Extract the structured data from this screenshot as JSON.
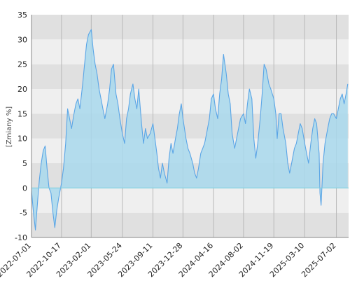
{
  "chart_data": {
    "type": "area",
    "ylabel": "[Zmiany %]",
    "ylim": [
      -10,
      35
    ],
    "yticks": [
      -10,
      -5,
      0,
      5,
      10,
      15,
      20,
      25,
      30,
      35
    ],
    "xlim": [
      "2022-07-01",
      "2025-08-15"
    ],
    "xticks": [
      "2022-07-01",
      "2022-10-17",
      "2023-02-01",
      "2023-05-24",
      "2023-09-11",
      "2023-12-28",
      "2024-04-16",
      "2024-08-02",
      "2024-11-19",
      "2025-03-10",
      "2025-07-02"
    ],
    "grid": true,
    "series": [
      {
        "points": [
          [
            "2022-07-01",
            -0.5
          ],
          [
            "2022-07-08",
            -5
          ],
          [
            "2022-07-15",
            -8.5
          ],
          [
            "2022-07-22",
            -3.5
          ],
          [
            "2022-07-29",
            1.5
          ],
          [
            "2022-08-05",
            5
          ],
          [
            "2022-08-12",
            7.5
          ],
          [
            "2022-08-19",
            8.5
          ],
          [
            "2022-08-26",
            4
          ],
          [
            "2022-09-02",
            0
          ],
          [
            "2022-09-09",
            -1
          ],
          [
            "2022-09-16",
            -5
          ],
          [
            "2022-09-23",
            -8
          ],
          [
            "2022-09-30",
            -4.5
          ],
          [
            "2022-10-07",
            -2
          ],
          [
            "2022-10-17",
            1
          ],
          [
            "2022-10-24",
            4
          ],
          [
            "2022-11-01",
            9
          ],
          [
            "2022-11-08",
            16
          ],
          [
            "2022-11-15",
            14
          ],
          [
            "2022-11-22",
            12
          ],
          [
            "2022-12-01",
            15
          ],
          [
            "2022-12-08",
            17
          ],
          [
            "2022-12-15",
            18
          ],
          [
            "2022-12-22",
            16
          ],
          [
            "2023-01-01",
            21
          ],
          [
            "2023-01-08",
            25
          ],
          [
            "2023-01-15",
            29
          ],
          [
            "2023-01-22",
            31
          ],
          [
            "2023-02-01",
            32
          ],
          [
            "2023-02-08",
            28
          ],
          [
            "2023-02-15",
            25
          ],
          [
            "2023-02-22",
            23
          ],
          [
            "2023-03-01",
            20
          ],
          [
            "2023-03-08",
            18
          ],
          [
            "2023-03-15",
            16
          ],
          [
            "2023-03-22",
            14
          ],
          [
            "2023-04-01",
            17
          ],
          [
            "2023-04-08",
            20
          ],
          [
            "2023-04-15",
            24
          ],
          [
            "2023-04-22",
            25
          ],
          [
            "2023-05-01",
            19
          ],
          [
            "2023-05-08",
            17
          ],
          [
            "2023-05-15",
            14
          ],
          [
            "2023-05-24",
            11
          ],
          [
            "2023-06-01",
            9
          ],
          [
            "2023-06-08",
            14
          ],
          [
            "2023-06-15",
            16
          ],
          [
            "2023-06-22",
            19
          ],
          [
            "2023-07-01",
            21
          ],
          [
            "2023-07-08",
            18
          ],
          [
            "2023-07-15",
            16
          ],
          [
            "2023-07-22",
            20
          ],
          [
            "2023-08-01",
            13
          ],
          [
            "2023-08-08",
            9
          ],
          [
            "2023-08-15",
            12
          ],
          [
            "2023-08-22",
            10
          ],
          [
            "2023-09-01",
            11
          ],
          [
            "2023-09-11",
            13
          ],
          [
            "2023-09-18",
            10
          ],
          [
            "2023-09-25",
            7
          ],
          [
            "2023-10-01",
            4
          ],
          [
            "2023-10-08",
            2
          ],
          [
            "2023-10-15",
            5
          ],
          [
            "2023-10-22",
            3
          ],
          [
            "2023-11-01",
            1
          ],
          [
            "2023-11-08",
            6
          ],
          [
            "2023-11-15",
            9
          ],
          [
            "2023-11-22",
            7
          ],
          [
            "2023-12-01",
            10
          ],
          [
            "2023-12-08",
            12
          ],
          [
            "2023-12-15",
            15
          ],
          [
            "2023-12-22",
            17
          ],
          [
            "2023-12-28",
            14
          ],
          [
            "2024-01-08",
            10
          ],
          [
            "2024-01-15",
            8
          ],
          [
            "2024-01-22",
            7
          ],
          [
            "2024-02-01",
            5
          ],
          [
            "2024-02-08",
            3
          ],
          [
            "2024-02-15",
            2
          ],
          [
            "2024-02-22",
            4
          ],
          [
            "2024-03-01",
            7
          ],
          [
            "2024-03-08",
            8
          ],
          [
            "2024-03-15",
            9
          ],
          [
            "2024-03-22",
            11
          ],
          [
            "2024-04-01",
            14
          ],
          [
            "2024-04-08",
            18
          ],
          [
            "2024-04-16",
            19
          ],
          [
            "2024-04-23",
            16
          ],
          [
            "2024-05-01",
            14
          ],
          [
            "2024-05-08",
            19
          ],
          [
            "2024-05-15",
            22
          ],
          [
            "2024-05-22",
            27
          ],
          [
            "2024-06-01",
            23
          ],
          [
            "2024-06-08",
            19
          ],
          [
            "2024-06-15",
            17
          ],
          [
            "2024-06-22",
            11
          ],
          [
            "2024-07-01",
            8
          ],
          [
            "2024-07-08",
            10
          ],
          [
            "2024-07-15",
            12
          ],
          [
            "2024-07-22",
            14
          ],
          [
            "2024-08-02",
            15
          ],
          [
            "2024-08-09",
            13
          ],
          [
            "2024-08-16",
            17
          ],
          [
            "2024-08-23",
            20
          ],
          [
            "2024-09-01",
            18
          ],
          [
            "2024-09-08",
            10
          ],
          [
            "2024-09-15",
            6
          ],
          [
            "2024-09-22",
            9
          ],
          [
            "2024-10-01",
            14
          ],
          [
            "2024-10-08",
            19
          ],
          [
            "2024-10-15",
            25
          ],
          [
            "2024-10-22",
            24
          ],
          [
            "2024-11-01",
            21
          ],
          [
            "2024-11-08",
            20
          ],
          [
            "2024-11-19",
            18
          ],
          [
            "2024-11-26",
            15
          ],
          [
            "2024-12-01",
            10
          ],
          [
            "2024-12-08",
            15
          ],
          [
            "2024-12-15",
            15
          ],
          [
            "2024-12-22",
            12
          ],
          [
            "2025-01-01",
            9
          ],
          [
            "2025-01-08",
            5
          ],
          [
            "2025-01-15",
            3
          ],
          [
            "2025-01-22",
            5
          ],
          [
            "2025-02-01",
            8
          ],
          [
            "2025-02-08",
            9
          ],
          [
            "2025-02-15",
            11
          ],
          [
            "2025-02-22",
            13
          ],
          [
            "2025-03-01",
            12
          ],
          [
            "2025-03-10",
            9
          ],
          [
            "2025-03-17",
            7
          ],
          [
            "2025-03-24",
            5
          ],
          [
            "2025-04-01",
            9
          ],
          [
            "2025-04-08",
            12
          ],
          [
            "2025-04-15",
            14
          ],
          [
            "2025-04-22",
            13
          ],
          [
            "2025-05-01",
            7
          ],
          [
            "2025-05-04",
            -1
          ],
          [
            "2025-05-08",
            -3.5
          ],
          [
            "2025-05-15",
            5
          ],
          [
            "2025-05-22",
            9
          ],
          [
            "2025-06-01",
            12
          ],
          [
            "2025-06-08",
            14
          ],
          [
            "2025-06-15",
            15
          ],
          [
            "2025-06-22",
            15
          ],
          [
            "2025-07-02",
            14
          ],
          [
            "2025-07-09",
            16
          ],
          [
            "2025-07-16",
            18
          ],
          [
            "2025-07-23",
            19
          ],
          [
            "2025-07-30",
            17
          ],
          [
            "2025-08-06",
            19
          ],
          [
            "2025-08-12",
            21
          ]
        ]
      }
    ],
    "colors": {
      "line": "#5aa5e6",
      "fill": "#a8d8ec",
      "band_dark": "#e0e0e0",
      "band_light": "#efefef",
      "zero_line": "#7fd0e0",
      "vgrid": "#b8b8b8"
    }
  }
}
